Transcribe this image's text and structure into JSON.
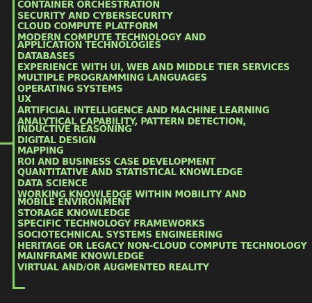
{
  "skills": [
    [
      "CONTAINER ORCHESTRATION"
    ],
    [
      "SECURITY AND CYBERSECURITY"
    ],
    [
      "CLOUD COMPUTE PLATFORM"
    ],
    [
      "MODERN COMPUTE TECHNOLOGY AND",
      "APPLICATION TECHNOLOGIES"
    ],
    [
      "DATABASES"
    ],
    [
      "EXPERIENCE WITH UI, WEB AND MIDDLE TIER SERVICES"
    ],
    [
      "MULTIPLE PROGRAMMING LANGUAGES"
    ],
    [
      "OPERATING SYSTEMS"
    ],
    [
      "UX"
    ],
    [
      "ARTIFICIAL INTELLIGENCE AND MACHINE LEARNING"
    ],
    [
      "ANALYTICAL CAPABILITY, PATTERN DETECTION,",
      "INDUCTIVE REASONING"
    ],
    [
      "DIGITAL DESIGN"
    ],
    [
      "MAPPING"
    ],
    [
      "ROI AND BUSINESS CASE DEVELOPMENT"
    ],
    [
      "QUANTITATIVE AND STATISTICAL KNOWLEDGE"
    ],
    [
      "DATA SCIENCE"
    ],
    [
      "WORKING KNOWLEDGE WITHIN MOBILITY AND",
      "MOBILE ENVIRONMENT"
    ],
    [
      "STORAGE KNOWLEDGE"
    ],
    [
      "SPECIFIC TECHNOLOGY FRAMEWORKS"
    ],
    [
      "SOCIOTECHNICAL SYSTEMS ENGINEERING"
    ],
    [
      "HERITAGE OR LEGACY NON-CLOUD COMPUTE TECHNOLOGY"
    ],
    [
      "MAINFRAME KNOWLEDGE"
    ],
    [
      "VIRTUAL AND/OR AUGMENTED REALITY"
    ]
  ],
  "colors": {
    "background": "#1e1e1e",
    "text": "#a4e389",
    "bracket": "#8ad36b"
  }
}
